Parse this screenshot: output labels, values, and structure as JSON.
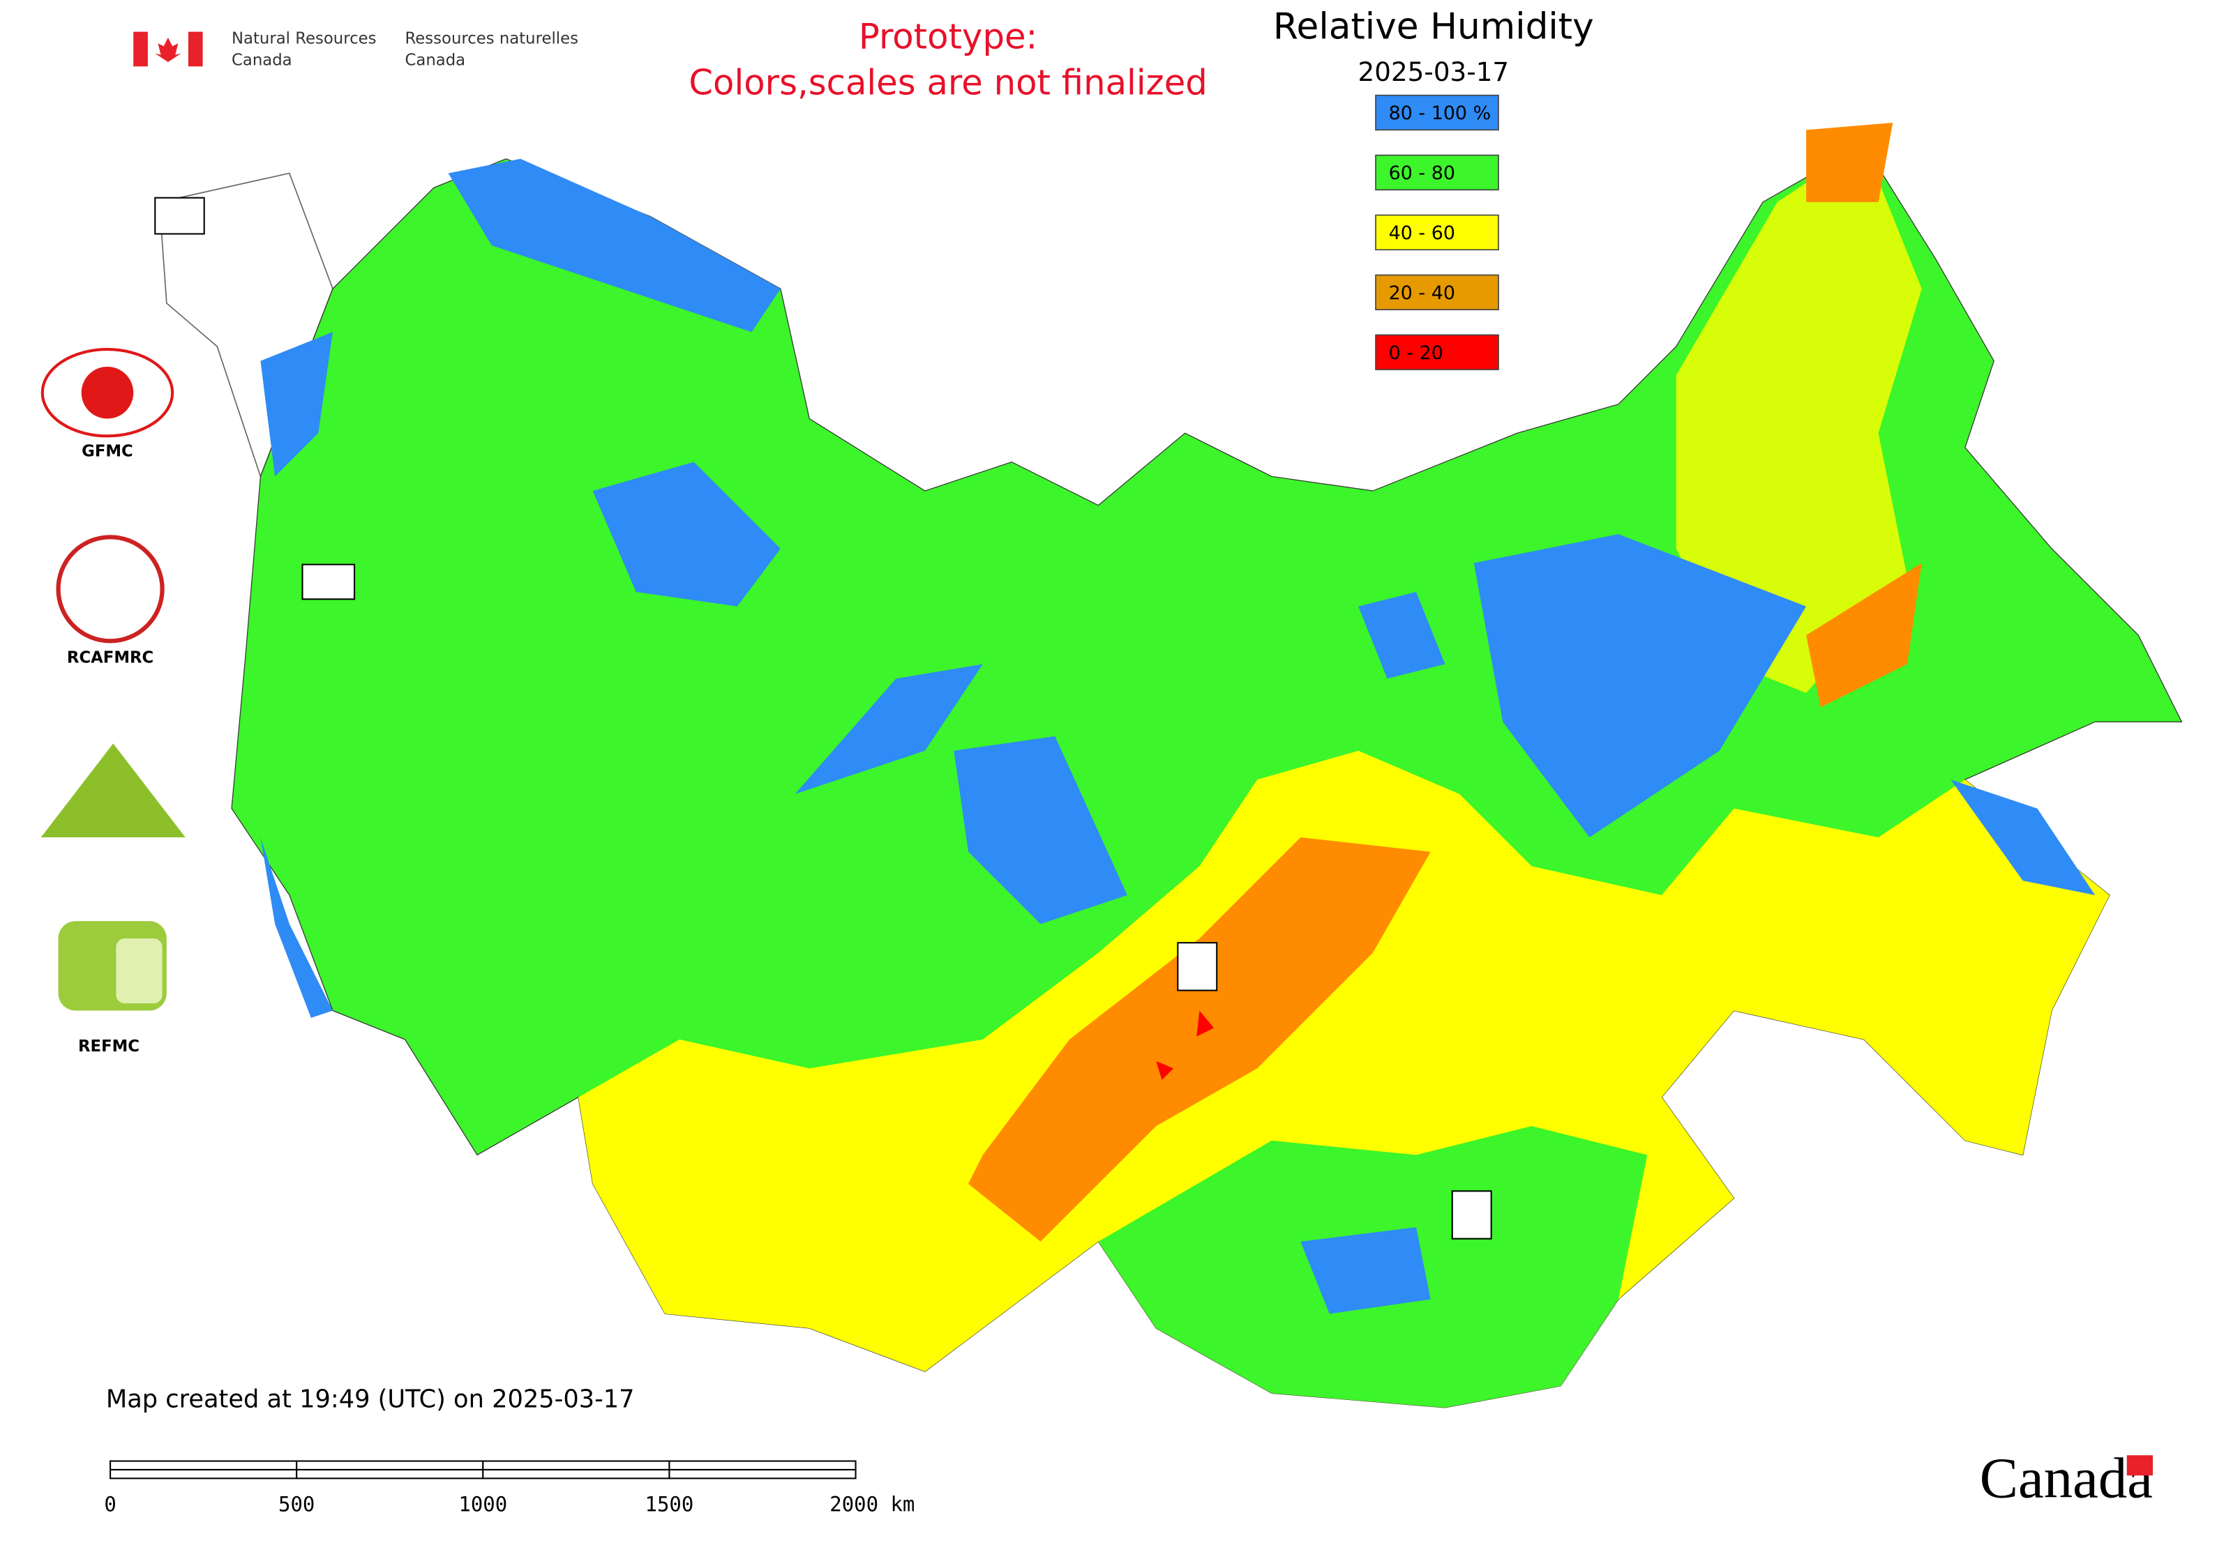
{
  "header": {
    "agency_en": [
      "Natural Resources",
      "Canada"
    ],
    "agency_fr": [
      "Ressources naturelles",
      "Canada"
    ],
    "notice": [
      "Prototype:",
      "Colors,scales are not finalized"
    ]
  },
  "map": {
    "title": "Relative Humidity",
    "date": "2025-03-17",
    "legend": [
      {
        "label": "80 - 100 %",
        "color": "#2f8bf5"
      },
      {
        "label": "60 - 80",
        "color": "#3cf52a"
      },
      {
        "label": "40 - 60",
        "color": "#ffff00"
      },
      {
        "label": "20 - 40",
        "color": "#e69a00"
      },
      {
        "label": "0 - 20",
        "color": "#ff0000"
      }
    ],
    "created": "Map created at 19:49 (UTC) on 2025-03-17",
    "scale_labels": [
      "0",
      "500",
      "1000",
      "1500",
      "2000 km"
    ]
  },
  "logos": [
    "GFMC",
    "RCAFMRC",
    "REFMC"
  ],
  "wordmark": "Canada"
}
